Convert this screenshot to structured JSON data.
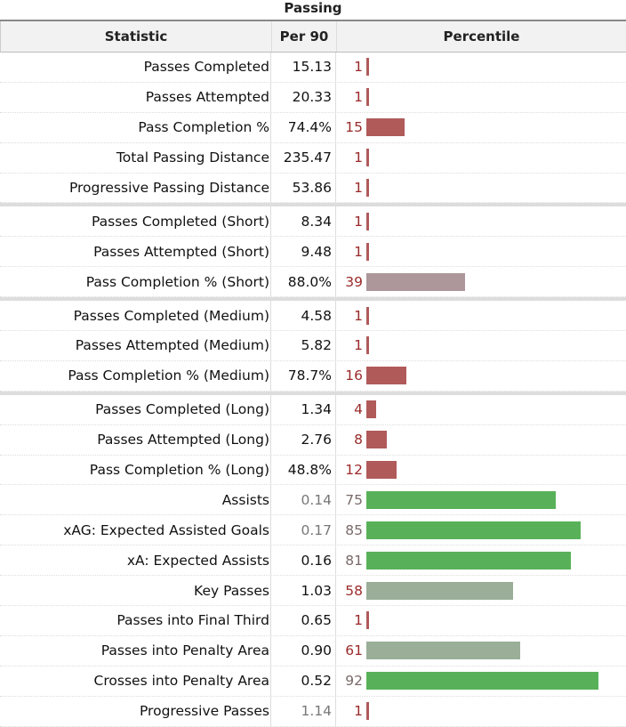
{
  "table": {
    "caption": "Passing",
    "headers": {
      "stat": "Statistic",
      "per90": "Per 90",
      "percentile": "Percentile"
    },
    "bar_scale_max": 100,
    "colors": {
      "low": "#b05a5a",
      "mid": "#ad979a",
      "midgreen": "#9aae98",
      "high": "#58b158",
      "text_low": "#9b2a2a",
      "text_mid": "#7a6a6a"
    },
    "rows": [
      {
        "stat": "Passes Completed",
        "per90": "15.13",
        "pct": "1",
        "pct_value": 1
      },
      {
        "stat": "Passes Attempted",
        "per90": "20.33",
        "pct": "1",
        "pct_value": 1
      },
      {
        "stat": "Pass Completion %",
        "per90": "74.4%",
        "pct": "15",
        "pct_value": 15
      },
      {
        "stat": "Total Passing Distance",
        "per90": "235.47",
        "pct": "1",
        "pct_value": 1
      },
      {
        "stat": "Progressive Passing Distance",
        "per90": "53.86",
        "pct": "1",
        "pct_value": 1
      },
      {
        "stat": "Passes Completed (Short)",
        "per90": "8.34",
        "pct": "1",
        "pct_value": 1,
        "sep": true
      },
      {
        "stat": "Passes Attempted (Short)",
        "per90": "9.48",
        "pct": "1",
        "pct_value": 1
      },
      {
        "stat": "Pass Completion % (Short)",
        "per90": "88.0%",
        "pct": "39",
        "pct_value": 39
      },
      {
        "stat": "Passes Completed (Medium)",
        "per90": "4.58",
        "pct": "1",
        "pct_value": 1,
        "sep": true
      },
      {
        "stat": "Passes Attempted (Medium)",
        "per90": "5.82",
        "pct": "1",
        "pct_value": 1
      },
      {
        "stat": "Pass Completion % (Medium)",
        "per90": "78.7%",
        "pct": "16",
        "pct_value": 16
      },
      {
        "stat": "Passes Completed (Long)",
        "per90": "1.34",
        "pct": "4",
        "pct_value": 4,
        "sep": true
      },
      {
        "stat": "Passes Attempted (Long)",
        "per90": "2.76",
        "pct": "8",
        "pct_value": 8
      },
      {
        "stat": "Pass Completion % (Long)",
        "per90": "48.8%",
        "pct": "12",
        "pct_value": 12
      },
      {
        "stat": "Assists",
        "per90": "0.14",
        "pct": "75",
        "pct_value": 75,
        "muted": true
      },
      {
        "stat": "xAG: Expected Assisted Goals",
        "per90": "0.17",
        "pct": "85",
        "pct_value": 85,
        "muted": true
      },
      {
        "stat": "xA: Expected Assists",
        "per90": "0.16",
        "pct": "81",
        "pct_value": 81
      },
      {
        "stat": "Key Passes",
        "per90": "1.03",
        "pct": "58",
        "pct_value": 58
      },
      {
        "stat": "Passes into Final Third",
        "per90": "0.65",
        "pct": "1",
        "pct_value": 1
      },
      {
        "stat": "Passes into Penalty Area",
        "per90": "0.90",
        "pct": "61",
        "pct_value": 61
      },
      {
        "stat": "Crosses into Penalty Area",
        "per90": "0.52",
        "pct": "92",
        "pct_value": 92
      },
      {
        "stat": "Progressive Passes",
        "per90": "1.14",
        "pct": "1",
        "pct_value": 1,
        "muted": true
      }
    ]
  }
}
